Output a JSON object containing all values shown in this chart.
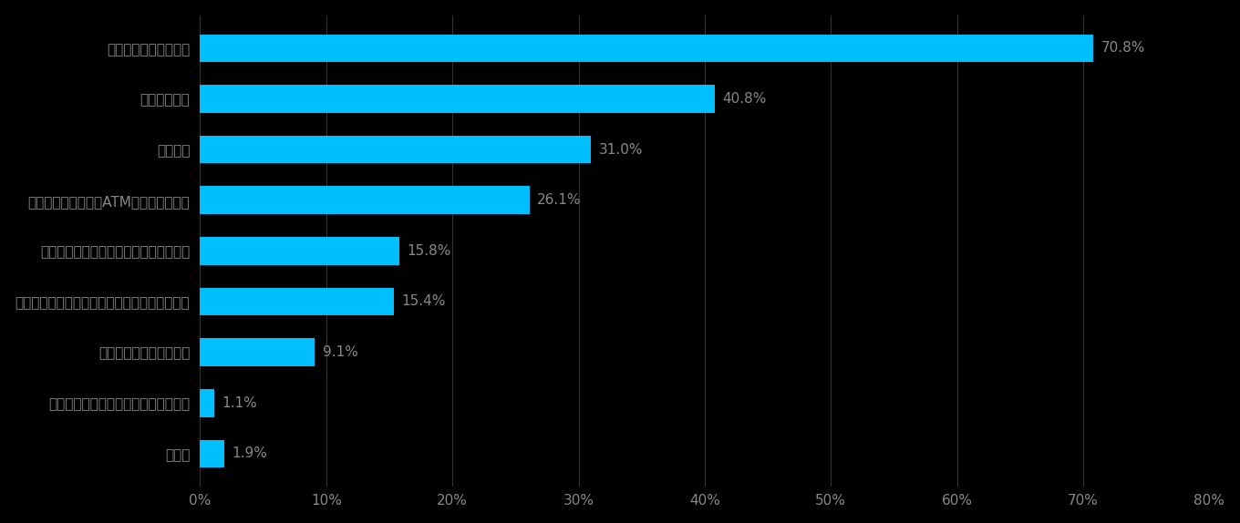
{
  "categories": [
    "クレジットカード払い",
    "コンビニ払い",
    "代金引換",
    "銀行・郵便局窓口・ATMでの振込・振替",
    "ネットバンキング・モバイルバンキング",
    "通信・プロバイダ料金への上乗せによる支払い",
    "電子マネーによる支払い",
    "現金書留・為替・小切手による支払い",
    "その他"
  ],
  "values": [
    70.8,
    40.8,
    31.0,
    26.1,
    15.8,
    15.4,
    9.1,
    1.1,
    1.9
  ],
  "labels": [
    "70.8%",
    "40.8%",
    "31.0%",
    "26.1%",
    "15.8%",
    "15.4%",
    "9.1%",
    "1.1%",
    "1.9%"
  ],
  "bar_color": "#00BFFF",
  "background_color": "#000000",
  "text_color": "#888888",
  "value_color": "#888888",
  "grid_color": "#333333",
  "xlim": [
    0,
    80
  ],
  "xticks": [
    0,
    10,
    20,
    30,
    40,
    50,
    60,
    70,
    80
  ],
  "xtick_labels": [
    "0%",
    "10%",
    "20%",
    "30%",
    "40%",
    "50%",
    "60%",
    "70%",
    "80%"
  ],
  "bar_height": 0.55,
  "font_size_labels": 11,
  "font_size_values": 11,
  "font_size_ticks": 11
}
